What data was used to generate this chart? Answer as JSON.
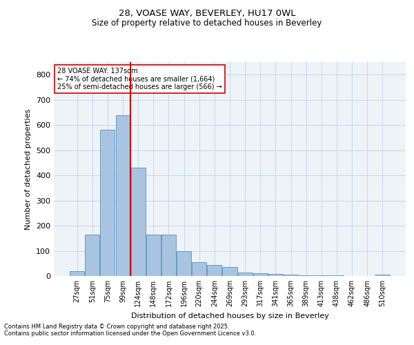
{
  "title_line1": "28, VOASE WAY, BEVERLEY, HU17 0WL",
  "title_line2": "Size of property relative to detached houses in Beverley",
  "xlabel": "Distribution of detached houses by size in Beverley",
  "ylabel": "Number of detached properties",
  "categories": [
    "27sqm",
    "51sqm",
    "75sqm",
    "99sqm",
    "124sqm",
    "148sqm",
    "172sqm",
    "196sqm",
    "220sqm",
    "244sqm",
    "269sqm",
    "293sqm",
    "317sqm",
    "341sqm",
    "365sqm",
    "389sqm",
    "413sqm",
    "438sqm",
    "462sqm",
    "486sqm",
    "510sqm"
  ],
  "values": [
    20,
    165,
    580,
    640,
    430,
    165,
    165,
    100,
    55,
    45,
    35,
    15,
    10,
    8,
    5,
    4,
    3,
    2,
    1,
    1,
    5
  ],
  "bar_color": "#a8c4e0",
  "bar_edge_color": "#5a8fc0",
  "vline_color": "#cc0000",
  "annotation_text": "28 VOASE WAY: 137sqm\n← 74% of detached houses are smaller (1,664)\n25% of semi-detached houses are larger (566) →",
  "annotation_box_color": "#ffffff",
  "annotation_box_edge": "#cc0000",
  "ylim": [
    0,
    850
  ],
  "yticks": [
    0,
    100,
    200,
    300,
    400,
    500,
    600,
    700,
    800
  ],
  "grid_color": "#c8d8e8",
  "background_color": "#eef3f8",
  "footer_line1": "Contains HM Land Registry data © Crown copyright and database right 2025.",
  "footer_line2": "Contains public sector information licensed under the Open Government Licence v3.0."
}
